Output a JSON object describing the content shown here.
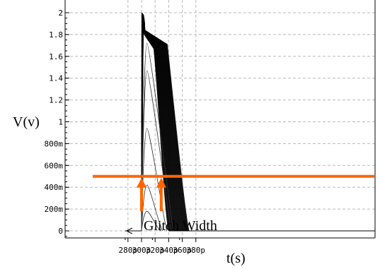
{
  "chart_data": {
    "type": "line",
    "title": "",
    "xlabel": "t(s)",
    "ylabel": "V(v)",
    "x_unit": "s",
    "y_unit": "V",
    "xlim": [
      2.75e-10,
      3.85e-10
    ],
    "ylim": [
      -0.1,
      2.05
    ],
    "x_ticks": [
      {
        "value": 2.8e-10,
        "label": "280p"
      },
      {
        "value": 3e-10,
        "label": "300p"
      },
      {
        "value": 3.2e-10,
        "label": "320p"
      },
      {
        "value": 3.4e-10,
        "label": "340p"
      },
      {
        "value": 3.6e-10,
        "label": "360p"
      },
      {
        "value": 3.8e-10,
        "label": "380p"
      }
    ],
    "y_ticks": [
      {
        "value": 0.0,
        "label": "0"
      },
      {
        "value": 0.2,
        "label": "200m"
      },
      {
        "value": 0.4,
        "label": "400m"
      },
      {
        "value": 0.6,
        "label": "600m"
      },
      {
        "value": 0.8,
        "label": "800m"
      },
      {
        "value": 1.0,
        "label": "1"
      },
      {
        "value": 1.2,
        "label": "1.2"
      },
      {
        "value": 1.4,
        "label": "1.4"
      },
      {
        "value": 1.6,
        "label": "1.6"
      },
      {
        "value": 1.8,
        "label": "1.8"
      },
      {
        "value": 2.0,
        "label": "2"
      }
    ],
    "grid": true,
    "legend": "none",
    "series_family": {
      "count": 60,
      "pulse_start": 3e-10,
      "tall_pulse_fall_start_range": [
        3.18e-10,
        3.38e-10
      ],
      "tall_pulse_fall_end_range": [
        3.4e-10,
        3.7e-10
      ],
      "partial_pulse_peaks": [
        1.72,
        1.47,
        0.94,
        0.42,
        0.18
      ],
      "partial_pulse_peak_time": 3.08e-10
    },
    "threshold": {
      "value": 0.5,
      "color": "#ff6600"
    },
    "annotation": {
      "text": "Glitch Width",
      "baseline_arrow_from": 3e-10,
      "baseline_arrow_to": 2.78e-10,
      "arrows_up_at": [
        3e-10,
        3.29e-10
      ],
      "arrow_color": "#ff6600"
    }
  }
}
